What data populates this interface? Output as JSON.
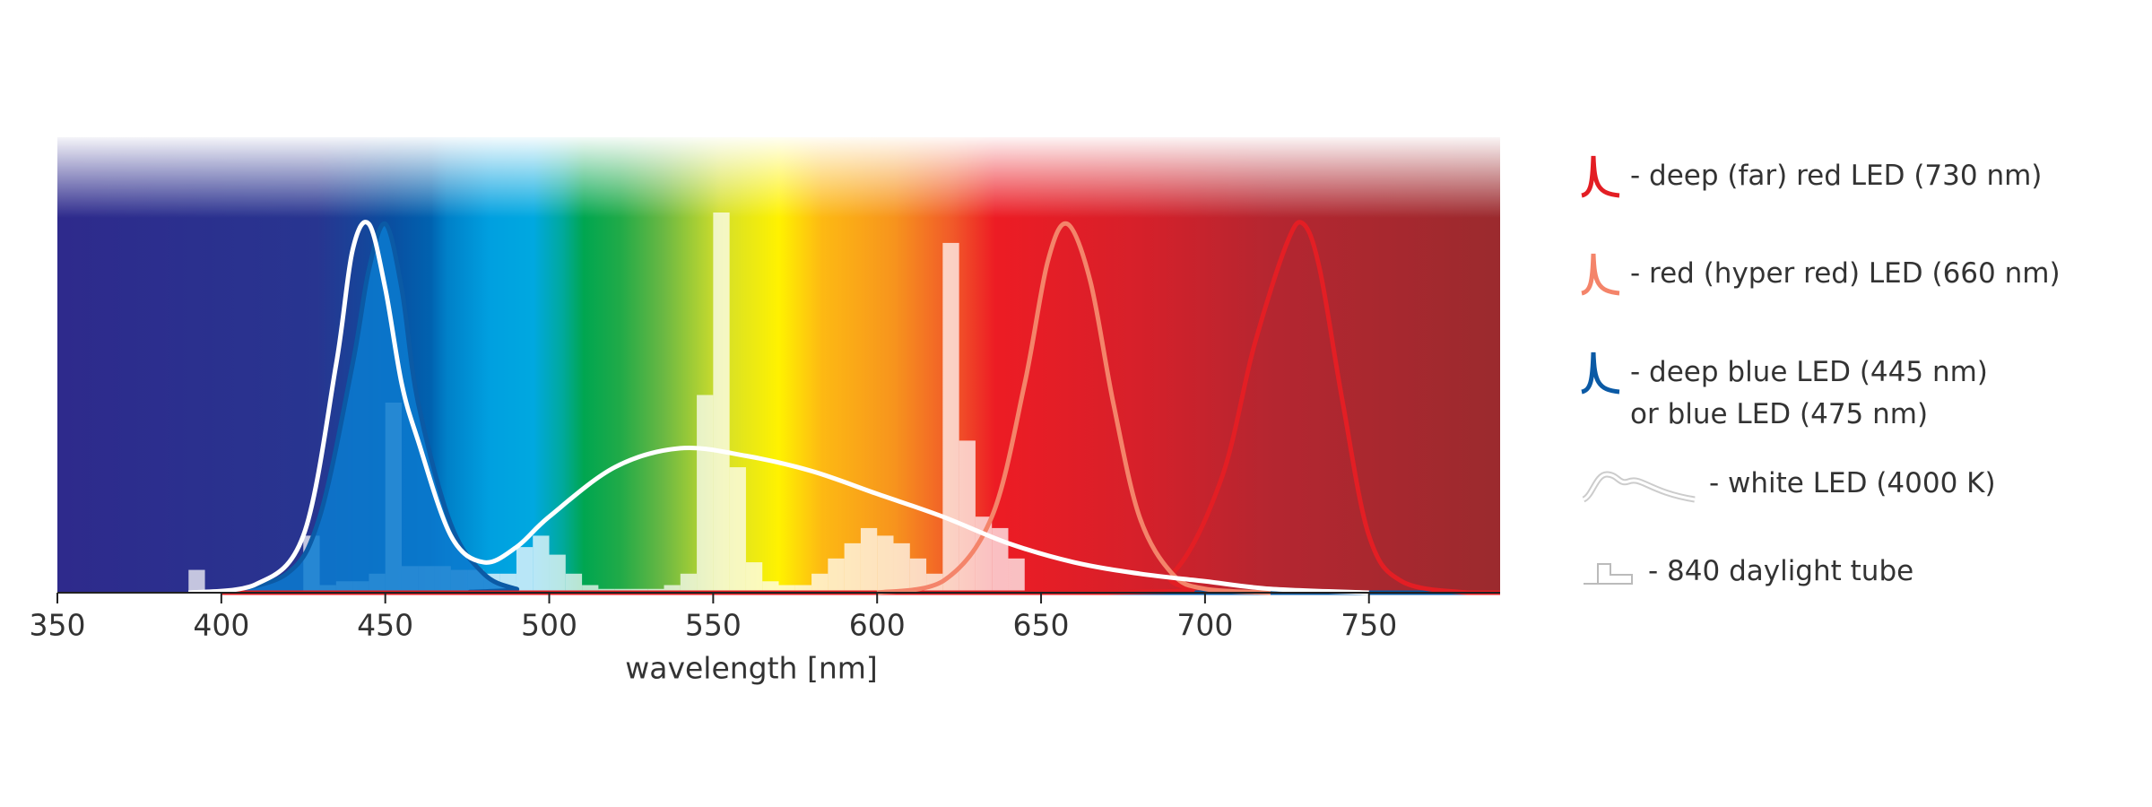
{
  "chart_data": {
    "type": "line",
    "xlabel": "wavelength [nm]",
    "xlim": [
      350,
      790
    ],
    "xticks": [
      350,
      400,
      450,
      500,
      550,
      600,
      650,
      700,
      750
    ],
    "ylim": [
      0,
      1
    ],
    "series": [
      {
        "name": "- deep (far) red LED (730 nm)",
        "color": "#e31e24",
        "x": [
          400,
          670,
          690,
          705,
          715,
          725,
          730,
          735,
          742,
          750,
          760,
          780,
          790
        ],
        "values": [
          0,
          0,
          0.05,
          0.3,
          0.65,
          0.92,
          0.97,
          0.85,
          0.5,
          0.15,
          0.03,
          0,
          0
        ]
      },
      {
        "name": "- red (hyper red) LED (660 nm)",
        "color": "#f4846a",
        "x": [
          600,
          620,
          635,
          645,
          652,
          658,
          665,
          672,
          680,
          690,
          700,
          720
        ],
        "values": [
          0,
          0.03,
          0.2,
          0.55,
          0.87,
          0.97,
          0.82,
          0.5,
          0.2,
          0.05,
          0.01,
          0
        ]
      },
      {
        "name": "- deep blue LED (445 nm)\nor blue LED (475 nm)",
        "color": "#0b5aa5",
        "fill": "#0a7bd0",
        "x": [
          400,
          420,
          430,
          440,
          445,
          450,
          455,
          460,
          470,
          480,
          490,
          500,
          790
        ],
        "values": [
          0,
          0.05,
          0.2,
          0.6,
          0.85,
          0.97,
          0.8,
          0.5,
          0.18,
          0.05,
          0.01,
          0,
          0
        ]
      },
      {
        "name": "- white LED (4000 K)",
        "color": "#ffffff",
        "x": [
          390,
          410,
          425,
          435,
          440,
          445,
          450,
          455,
          460,
          470,
          480,
          490,
          500,
          520,
          540,
          560,
          580,
          600,
          620,
          640,
          660,
          680,
          700,
          720,
          750
        ],
        "values": [
          0,
          0.02,
          0.15,
          0.6,
          0.9,
          0.97,
          0.8,
          0.55,
          0.4,
          0.15,
          0.08,
          0.12,
          0.2,
          0.33,
          0.38,
          0.36,
          0.32,
          0.26,
          0.2,
          0.13,
          0.08,
          0.05,
          0.03,
          0.01,
          0
        ]
      }
    ],
    "histogram": {
      "name": "- 840 daylight tube",
      "color": "#ffffff",
      "bins": [
        385,
        390,
        395,
        400,
        405,
        410,
        415,
        420,
        425,
        430,
        435,
        440,
        445,
        450,
        455,
        460,
        465,
        470,
        475,
        480,
        485,
        490,
        495,
        500,
        505,
        510,
        515,
        520,
        525,
        530,
        535,
        540,
        545,
        550,
        555,
        560,
        565,
        570,
        575,
        580,
        585,
        590,
        595,
        600,
        605,
        610,
        615,
        620,
        625,
        630,
        635,
        640,
        645
      ],
      "counts": [
        0,
        0.06,
        0,
        0,
        0,
        0,
        0,
        0,
        0.15,
        0.02,
        0.03,
        0.03,
        0.05,
        0.5,
        0.07,
        0.07,
        0.07,
        0.06,
        0.06,
        0.05,
        0.05,
        0.12,
        0.15,
        0.1,
        0.05,
        0.02,
        0.01,
        0.01,
        0.01,
        0.01,
        0.02,
        0.05,
        0.52,
        1.0,
        0.33,
        0.08,
        0.03,
        0.02,
        0.02,
        0.05,
        0.09,
        0.13,
        0.17,
        0.15,
        0.13,
        0.09,
        0.05,
        0.92,
        0.4,
        0.2,
        0.17,
        0.09
      ]
    }
  }
}
